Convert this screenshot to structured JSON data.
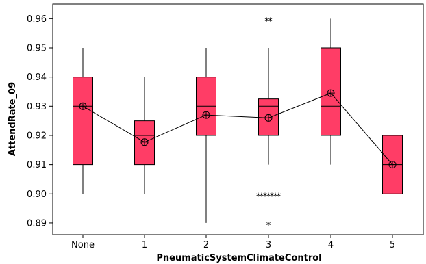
{
  "chart_data": {
    "type": "boxplot",
    "title": "",
    "xlabel": "PneumaticSystemClimateControl",
    "ylabel": "AttendRate_09",
    "categories": [
      "None",
      "1",
      "2",
      "3",
      "4",
      "5"
    ],
    "ylim": [
      0.886,
      0.965
    ],
    "yticks": [
      0.89,
      0.9,
      0.91,
      0.92,
      0.93,
      0.94,
      0.95,
      0.96
    ],
    "ytick_labels": [
      "0.89",
      "0.90",
      "0.91",
      "0.92",
      "0.93",
      "0.94",
      "0.95",
      "0.96"
    ],
    "grid": false,
    "box_color": "#ff3d66",
    "boxes": [
      {
        "category": "None",
        "whisker_low": 0.9,
        "q1": 0.91,
        "median": 0.93,
        "q3": 0.94,
        "whisker_high": 0.95,
        "mean": 0.93,
        "outliers": []
      },
      {
        "category": "1",
        "whisker_low": 0.9,
        "q1": 0.91,
        "median": 0.92,
        "q3": 0.925,
        "whisker_high": 0.94,
        "mean": 0.9177,
        "outliers": []
      },
      {
        "category": "2",
        "whisker_low": 0.89,
        "q1": 0.92,
        "median": 0.93,
        "q3": 0.94,
        "whisker_high": 0.95,
        "mean": 0.927,
        "outliers": []
      },
      {
        "category": "3",
        "whisker_low": 0.91,
        "q1": 0.92,
        "median": 0.93,
        "q3": 0.9325,
        "whisker_high": 0.95,
        "mean": 0.926,
        "outliers": [
          0.96,
          0.96,
          0.9,
          0.9,
          0.9,
          0.9,
          0.9,
          0.9,
          0.9,
          0.89
        ]
      },
      {
        "category": "4",
        "whisker_low": 0.91,
        "q1": 0.92,
        "median": 0.93,
        "q3": 0.95,
        "whisker_high": 0.96,
        "mean": 0.9345,
        "outliers": []
      },
      {
        "category": "5",
        "whisker_low": 0.9,
        "q1": 0.9,
        "median": 0.91,
        "q3": 0.92,
        "whisker_high": 0.92,
        "mean": 0.91,
        "outliers": []
      }
    ]
  }
}
